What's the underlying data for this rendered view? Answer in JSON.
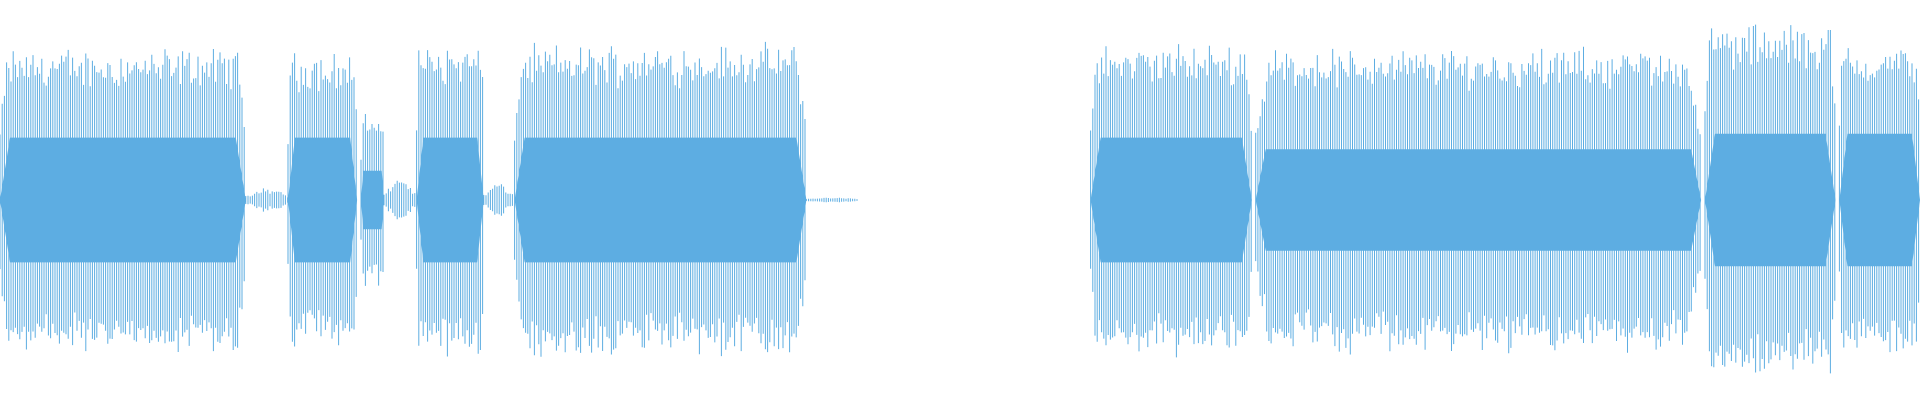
{
  "waveform": {
    "color": "#5dade2",
    "background": "#ffffff",
    "peak_level": 0.93,
    "body_level": 0.32,
    "segments": [
      {
        "start": 0.0,
        "end": 0.128,
        "peak": 0.8,
        "body": 0.32
      },
      {
        "start": 0.15,
        "end": 0.186,
        "peak": 0.78,
        "body": 0.32
      },
      {
        "start": 0.188,
        "end": 0.2,
        "peak": 0.45,
        "body": 0.15
      },
      {
        "start": 0.217,
        "end": 0.252,
        "peak": 0.82,
        "body": 0.32
      },
      {
        "start": 0.268,
        "end": 0.42,
        "peak": 0.82,
        "body": 0.32
      },
      {
        "start": 0.568,
        "end": 0.652,
        "peak": 0.82,
        "body": 0.32
      },
      {
        "start": 0.654,
        "end": 0.886,
        "peak": 0.8,
        "body": 0.26
      },
      {
        "start": 0.888,
        "end": 0.956,
        "peak": 0.93,
        "body": 0.34
      },
      {
        "start": 0.958,
        "end": 1.0,
        "peak": 0.82,
        "body": 0.34
      }
    ],
    "gaps": [
      {
        "start": 0.128,
        "end": 0.15,
        "noise": 0.06
      },
      {
        "start": 0.2,
        "end": 0.217,
        "noise": 0.1
      },
      {
        "start": 0.252,
        "end": 0.268,
        "noise": 0.08
      },
      {
        "start": 0.42,
        "end": 0.447,
        "noise": 0.01
      }
    ]
  }
}
